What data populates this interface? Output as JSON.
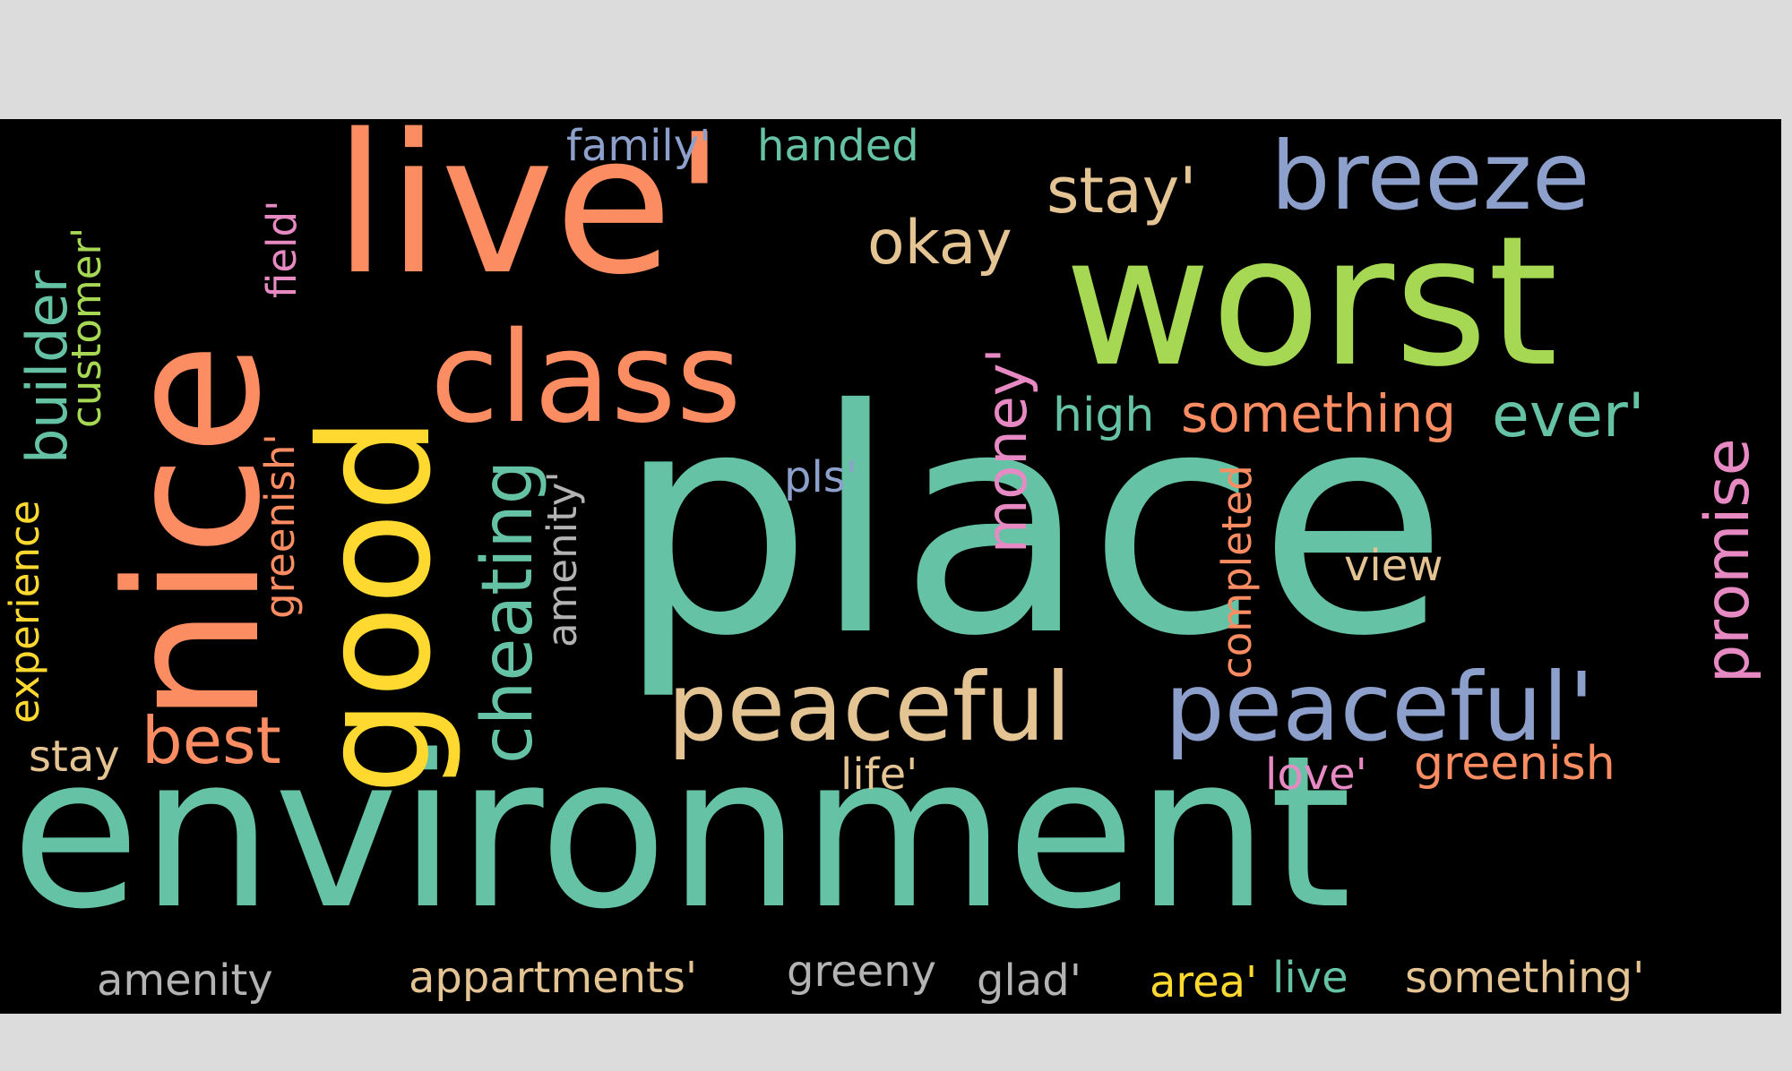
{
  "colors": {
    "background": "#000000",
    "page": "#dcdcdc",
    "teal": "#66c2a5",
    "orange": "#fc8d62",
    "blue": "#8da0cb",
    "pink": "#e78ac3",
    "green": "#a6d854",
    "yellow": "#ffd92f",
    "tan": "#e5c494",
    "gray": "#b3b3b3"
  },
  "words": {
    "environment": "environment",
    "place": "place",
    "worst": "worst",
    "live_quote": "live'",
    "nice": "nice",
    "good": "good",
    "class": "class",
    "peaceful": "peaceful",
    "peaceful_quote": "peaceful'",
    "breeze": "breeze",
    "stay_quote": "stay'",
    "okay": "okay",
    "family_quote": "family'",
    "handed": "handed",
    "something": "something",
    "high": "high",
    "ever_quote": "ever'",
    "money_quote": "money'",
    "pls_quote": "pls'",
    "promise": "promise",
    "view": "view",
    "completed": "completed",
    "cheating": "cheating",
    "amenity_quote": "amenity'",
    "greenish_quote": "greenish'",
    "field_quote": "field'",
    "builder": "builder",
    "customer_quote": "customer'",
    "experience": "experience",
    "stay": "stay",
    "best": "best",
    "life_quote": "life'",
    "love_quote": "love'",
    "greenish": "greenish",
    "amenity": "amenity",
    "appartments_quote": "appartments'",
    "greeny": "greeny",
    "glad_quote": "glad'",
    "area_quote": "area'",
    "live": "live",
    "something_quote": "something'"
  }
}
